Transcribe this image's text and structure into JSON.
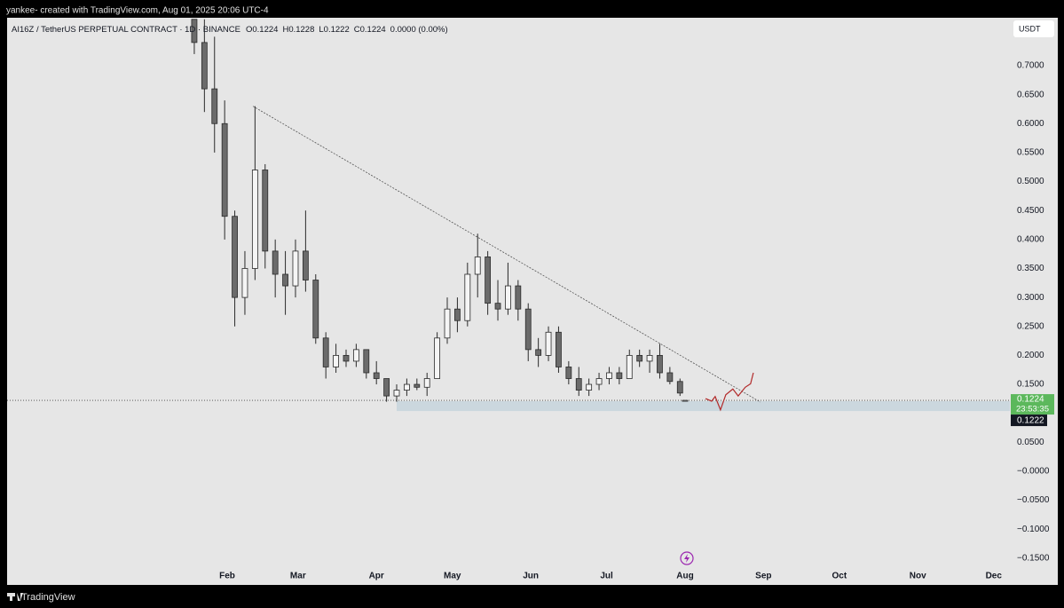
{
  "header": {
    "caption": "yankee- created with TradingView.com, Aug 01, 2025 20:06 UTC-4"
  },
  "footer": {
    "brand": "TradingView"
  },
  "chart_data": {
    "type": "candlestick",
    "title": "AI16Z / TetherUS PERPETUAL CONTRACT · 1D · BINANCE",
    "ohlc_legend": [
      {
        "label": "O",
        "value": 0.1224
      },
      {
        "label": "H",
        "value": 0.1228
      },
      {
        "label": "L",
        "value": 0.1222
      },
      {
        "label": "C",
        "value": 0.1224
      }
    ],
    "change": "0.0000 (0.00%)",
    "currency": "USDT",
    "countdown": "23:53:35",
    "x": [
      19,
      23,
      27,
      31,
      35,
      39,
      43,
      47,
      51,
      55,
      59,
      63,
      67,
      71,
      75,
      79,
      83,
      87,
      91,
      95,
      99,
      103,
      107,
      111,
      115,
      119,
      123,
      127,
      131,
      135,
      139,
      143,
      147,
      151,
      155,
      159,
      163,
      167,
      171,
      175,
      179,
      183,
      187,
      191,
      195,
      199,
      203,
      207,
      211,
      213
    ],
    "open": [
      0.78,
      0.74,
      0.66,
      0.6,
      0.44,
      0.3,
      0.35,
      0.52,
      0.38,
      0.34,
      0.32,
      0.38,
      0.33,
      0.23,
      0.18,
      0.2,
      0.19,
      0.21,
      0.17,
      0.16,
      0.13,
      0.14,
      0.15,
      0.145,
      0.16,
      0.23,
      0.28,
      0.26,
      0.34,
      0.37,
      0.29,
      0.28,
      0.32,
      0.28,
      0.21,
      0.2,
      0.24,
      0.18,
      0.16,
      0.14,
      0.15,
      0.16,
      0.17,
      0.16,
      0.2,
      0.19,
      0.2,
      0.17,
      0.155,
      0.1224
    ],
    "high": [
      0.78,
      0.78,
      0.75,
      0.64,
      0.45,
      0.38,
      0.63,
      0.53,
      0.4,
      0.38,
      0.4,
      0.45,
      0.34,
      0.24,
      0.22,
      0.21,
      0.22,
      0.21,
      0.19,
      0.16,
      0.15,
      0.16,
      0.16,
      0.17,
      0.24,
      0.3,
      0.3,
      0.36,
      0.41,
      0.38,
      0.33,
      0.36,
      0.33,
      0.29,
      0.23,
      0.25,
      0.25,
      0.19,
      0.18,
      0.16,
      0.17,
      0.18,
      0.18,
      0.21,
      0.21,
      0.21,
      0.22,
      0.18,
      0.16,
      0.1228
    ],
    "low": [
      0.72,
      0.62,
      0.55,
      0.4,
      0.25,
      0.27,
      0.33,
      0.35,
      0.3,
      0.27,
      0.3,
      0.31,
      0.22,
      0.16,
      0.17,
      0.18,
      0.18,
      0.16,
      0.15,
      0.12,
      0.12,
      0.13,
      0.14,
      0.13,
      0.16,
      0.22,
      0.24,
      0.25,
      0.3,
      0.27,
      0.26,
      0.27,
      0.26,
      0.19,
      0.18,
      0.19,
      0.17,
      0.15,
      0.13,
      0.13,
      0.14,
      0.15,
      0.15,
      0.16,
      0.18,
      0.17,
      0.16,
      0.15,
      0.13,
      0.1222
    ],
    "close": [
      0.74,
      0.66,
      0.6,
      0.44,
      0.3,
      0.35,
      0.52,
      0.38,
      0.34,
      0.32,
      0.38,
      0.33,
      0.23,
      0.18,
      0.2,
      0.19,
      0.21,
      0.17,
      0.16,
      0.13,
      0.14,
      0.15,
      0.145,
      0.16,
      0.23,
      0.28,
      0.26,
      0.34,
      0.37,
      0.29,
      0.28,
      0.32,
      0.28,
      0.21,
      0.2,
      0.24,
      0.18,
      0.16,
      0.14,
      0.15,
      0.16,
      0.17,
      0.16,
      0.2,
      0.19,
      0.2,
      0.17,
      0.155,
      0.135,
      0.1224
    ],
    "up_color": "#f5f5f5",
    "down_color": "#6b6b6b",
    "edge_color": "#2a2a2a",
    "xlim": [
      -55,
      341.4
    ],
    "xticks": [
      {
        "value": 32,
        "label": "Feb"
      },
      {
        "value": 60,
        "label": "Mar"
      },
      {
        "value": 91,
        "label": "Apr"
      },
      {
        "value": 121,
        "label": "May"
      },
      {
        "value": 152,
        "label": "Jun"
      },
      {
        "value": 182,
        "label": "Jul"
      },
      {
        "value": 213,
        "label": "Aug"
      },
      {
        "value": 244,
        "label": "Sep"
      },
      {
        "value": 274,
        "label": "Oct"
      },
      {
        "value": 305,
        "label": "Nov"
      },
      {
        "value": 335,
        "label": "Dec"
      }
    ],
    "ylim": [
      -0.1946,
      0.7827
    ],
    "yticks": [
      {
        "value": 0.7,
        "label": "0.7000"
      },
      {
        "value": 0.65,
        "label": "0.6500"
      },
      {
        "value": 0.6,
        "label": "0.6000"
      },
      {
        "value": 0.55,
        "label": "0.5500"
      },
      {
        "value": 0.5,
        "label": "0.5000"
      },
      {
        "value": 0.45,
        "label": "0.4500"
      },
      {
        "value": 0.4,
        "label": "0.4000"
      },
      {
        "value": 0.35,
        "label": "0.3500"
      },
      {
        "value": 0.3,
        "label": "0.3000"
      },
      {
        "value": 0.25,
        "label": "0.2500"
      },
      {
        "value": 0.2,
        "label": "0.2000"
      },
      {
        "value": 0.15,
        "label": "0.1500"
      },
      {
        "value": 0.05,
        "label": "0.0500"
      },
      {
        "value": 0,
        "label": "−0.0000"
      },
      {
        "value": -0.05,
        "label": "−0.0500"
      },
      {
        "value": -0.1,
        "label": "−0.1000"
      },
      {
        "value": -0.15,
        "label": "−0.1500"
      }
    ],
    "grid": false,
    "trendline": {
      "x": [
        42.2,
        242.8
      ],
      "y": [
        0.63,
        0.1194
      ],
      "color": "#555555"
    },
    "support_zone": {
      "x": [
        99,
        341.4
      ],
      "y": [
        0.104,
        0.121
      ],
      "color": "#c5d3dc"
    },
    "projection": {
      "x": [
        221.1,
        223.5,
        224.9,
        227.0,
        229.1,
        231.9,
        234.0,
        236.8,
        238.9,
        240.0
      ],
      "y": [
        0.1255,
        0.121,
        0.129,
        0.106,
        0.132,
        0.142,
        0.13,
        0.145,
        0.151,
        0.17
      ],
      "color": "#b22a2a"
    }
  }
}
